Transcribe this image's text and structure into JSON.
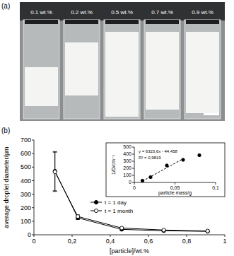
{
  "figure": {
    "panel_a": "(a)",
    "panel_b": "(b)",
    "vial_labels": [
      "0.1 wt.%",
      "0.2 wt.%",
      "0.5 wt.%",
      "0.7 wt.%",
      "0.9 wt.%"
    ]
  },
  "chart_data": [
    {
      "type": "line",
      "x_label": "[particle]/wt.%",
      "y_label": "average droplet diameter/µm",
      "x": [
        0.11,
        0.23,
        0.46,
        0.68,
        0.91
      ],
      "series": [
        {
          "name": "t = 1 day",
          "color": "#000000",
          "marker": "circle",
          "values": [
            470,
            125,
            40,
            30,
            25
          ],
          "errors": [
            145,
            12,
            4,
            3,
            2
          ]
        },
        {
          "name": "t = 1 month",
          "color": "#000000",
          "marker": "open_circle",
          "values": [
            465,
            135,
            50,
            35,
            28
          ],
          "errors": [
            145,
            12,
            4,
            3,
            2
          ]
        }
      ],
      "xlim": [
        0,
        1
      ],
      "xticks": [
        0,
        {
          "value": 0.2,
          "label": "0,2"
        },
        {
          "value": 0.4,
          "label": "0,4"
        },
        {
          "value": 0.6,
          "label": "0,6"
        },
        {
          "value": 0.8,
          "label": "0,8"
        },
        1
      ],
      "ylim": [
        0,
        700
      ],
      "yticks": [
        0,
        100,
        200,
        300,
        400,
        500,
        600,
        700
      ],
      "legend": "bottom"
    },
    {
      "type": "scatter",
      "x_label": "particle mass/g",
      "y_label": "1/D/cm⁻¹",
      "x": [
        0.01,
        0.02,
        0.04,
        0.06,
        0.08
      ],
      "series": [
        {
          "color": "#000000",
          "marker": "circle",
          "values": [
            25,
            75,
            240,
            320,
            385
          ]
        },
        {
          "type": "line",
          "line_style": "dashed",
          "color": "#000000",
          "x": [
            0.01,
            0.06
          ],
          "values": [
            18.8,
            334.96
          ]
        }
      ],
      "annotations": [
        "y = 6323,6x - 44,458",
        "R² = 0,9819"
      ],
      "xlim": [
        0,
        0.1
      ],
      "xticks": [
        0,
        {
          "value": 0.05,
          "label": "0,05"
        },
        {
          "value": 0.1,
          "label": "0,1"
        }
      ],
      "ylim": [
        0,
        500
      ],
      "yticks": [
        0,
        100,
        200,
        300,
        400,
        500
      ]
    }
  ]
}
